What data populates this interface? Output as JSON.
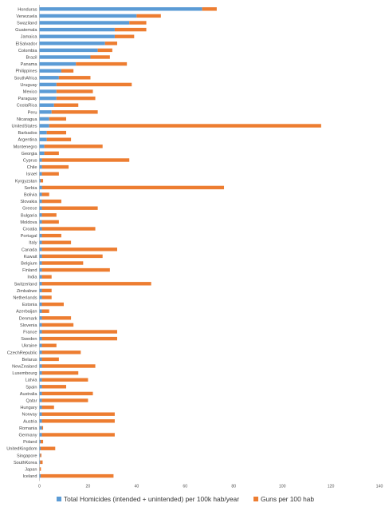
{
  "chart_data": {
    "type": "bar",
    "orientation": "horizontal",
    "stacked": true,
    "categories": [
      "Honduras",
      "Venezuela",
      "Swaziland",
      "Guatemala",
      "Jamaica",
      "ElSalvador",
      "Colombia",
      "Brazil",
      "Panama",
      "Philippines",
      "SouthAfrica",
      "Uruguay",
      "Mexico",
      "Paraguay",
      "CostaRica",
      "Peru",
      "Nicaragua",
      "UnitedStates",
      "Barbados",
      "Argentina",
      "Montenegro",
      "Georgia",
      "Cyprus",
      "Chile",
      "Israel",
      "Kyrgyzstan",
      "Serbia",
      "Bolivia",
      "Slovakia",
      "Greece",
      "Bulgaria",
      "Moldova",
      "Croatia",
      "Portugal",
      "Italy",
      "Canada",
      "Kuwait",
      "Belgium",
      "Finland",
      "India",
      "Switzerland",
      "Zimbabwe",
      "Netherlands",
      "Estonia",
      "Azerbaijan",
      "Denmark",
      "Slovenia",
      "France",
      "Sweden",
      "Ukraine",
      "CzechRepublic",
      "Belarus",
      "NewZealand",
      "Luxembourg",
      "Latvia",
      "Spain",
      "Australia",
      "Qatar",
      "Hungary",
      "Norway",
      "Austria",
      "Romania",
      "Germany",
      "Poland",
      "UnitedKingdom",
      "Singapore",
      "SouthKorea",
      "Japan",
      "Iceland"
    ],
    "series": [
      {
        "name": "Total Homicides (intended + unintended)  per 100k hab/year",
        "color": "#5b9bd5",
        "values": [
          67,
          40,
          37,
          31,
          31,
          27,
          24,
          21,
          15,
          9,
          8,
          7,
          7,
          7,
          6,
          5,
          4,
          4,
          3,
          3,
          2,
          2,
          1,
          1,
          1,
          0.5,
          1,
          1,
          1,
          1,
          1,
          1,
          1,
          1,
          1,
          1,
          1,
          1,
          1,
          1,
          1,
          1,
          1,
          1,
          1,
          1,
          1,
          1,
          1,
          1,
          1,
          1,
          1,
          1,
          1,
          1,
          1,
          1,
          1,
          1,
          1,
          1,
          1,
          0.5,
          0.5,
          0.3,
          0.3,
          0.1,
          0.5
        ]
      },
      {
        "name": "Guns per 100 hab",
        "color": "#ed7d31",
        "values": [
          6,
          10,
          7,
          13,
          8,
          5,
          6,
          8,
          21,
          5,
          13,
          31,
          15,
          16,
          10,
          19,
          7,
          112,
          8,
          10,
          24,
          6,
          36,
          11,
          7,
          1,
          75,
          3,
          8,
          23,
          6,
          7,
          22,
          8,
          12,
          31,
          25,
          17,
          28,
          4,
          45,
          4,
          4,
          9,
          3,
          12,
          13,
          31,
          31,
          6,
          16,
          7,
          22,
          15,
          19,
          10,
          21,
          19,
          5,
          30,
          30,
          0.5,
          30,
          1,
          6,
          0.5,
          1,
          0.5,
          30
        ]
      }
    ],
    "xlim": [
      0,
      140
    ],
    "xticks": [
      0,
      20,
      40,
      60,
      80,
      100,
      120,
      140
    ],
    "grid": false,
    "legend": "bottom"
  }
}
